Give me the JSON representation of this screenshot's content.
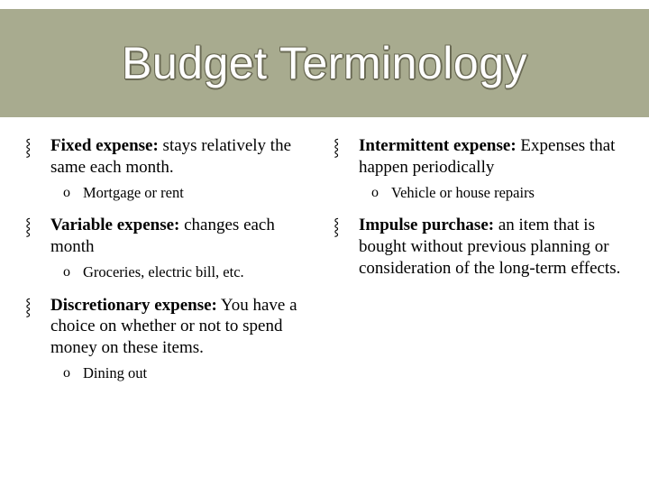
{
  "title": "Budget Terminology",
  "colors": {
    "title_band_bg": "#a8ab8f",
    "title_text": "#ffffff",
    "title_outline": "#6b6b55",
    "body_text": "#000000",
    "page_bg": "#ffffff"
  },
  "typography": {
    "title_font": "Arial",
    "title_fontsize_pt": 38,
    "body_font": "Georgia",
    "body_fontsize_pt": 14,
    "sub_fontsize_pt": 12
  },
  "bullet_glyph": "⸾",
  "sub_bullet_glyph": "o",
  "left_items": [
    {
      "term": "Fixed expense:",
      "definition": "  stays relatively the same each month.",
      "sub": "Mortgage or rent"
    },
    {
      "term": "Variable expense:",
      "definition": "  changes each month",
      "sub": "Groceries, electric bill, etc."
    },
    {
      "term": "Discretionary expense:",
      "definition": "  You have a choice on whether or not to spend money on these items.",
      "sub": "Dining out"
    }
  ],
  "right_items": [
    {
      "term": "Intermittent expense:",
      "definition": " Expenses that happen periodically",
      "sub": "Vehicle or house repairs"
    },
    {
      "term": "Impulse purchase:",
      "definition": "  an item that is bought without previous planning or consideration of the long-term effects.",
      "sub": null
    }
  ]
}
